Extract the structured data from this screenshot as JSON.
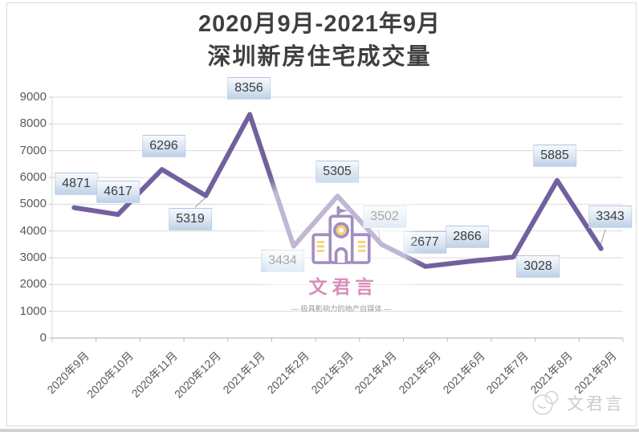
{
  "title": {
    "line1": "2020月9月-2021年9月",
    "line2": "深圳新房住宅成交量"
  },
  "chart_data": {
    "type": "line",
    "categories": [
      "2020年9月",
      "2020年10月",
      "2020年11月",
      "2020年12月",
      "2021年1月",
      "2021年2月",
      "2021年3月",
      "2021年4月",
      "2021年5月",
      "2021年6月",
      "2021年7月",
      "2021年8月",
      "2021年9月"
    ],
    "values": [
      4871,
      4617,
      6296,
      5319,
      8356,
      3434,
      5305,
      3502,
      2677,
      2866,
      3028,
      5885,
      3343
    ],
    "title": "2020月9月-2021年9月 深圳新房住宅成交量",
    "xlabel": "",
    "ylabel": "",
    "ylim": [
      0,
      9000
    ],
    "ytick_step": 1000,
    "grid": true,
    "legend": "none",
    "data_labels_visible": true,
    "x_label_rotation_deg": -45,
    "line_color": "#72609e",
    "grid_color": "#d9d9d9",
    "axis_color": "#bfbfbf",
    "tick_text_color": "#595959",
    "data_label_text_color": "#3d3d3d",
    "data_label_box_colors": [
      "#f7fafd",
      "#bed1e8"
    ]
  },
  "watermark_center": {
    "icon": "building-icon",
    "brand": "文君言",
    "tagline": "— 极具影响力的地产自媒体 —",
    "brand_color": "#d584b2",
    "icon_color": "#8a6fae",
    "icon_accent_color": "#f3c64e"
  },
  "watermark_corner": {
    "icon": "seal-icon",
    "brand": "文君言",
    "color": "#c9c9c9"
  }
}
